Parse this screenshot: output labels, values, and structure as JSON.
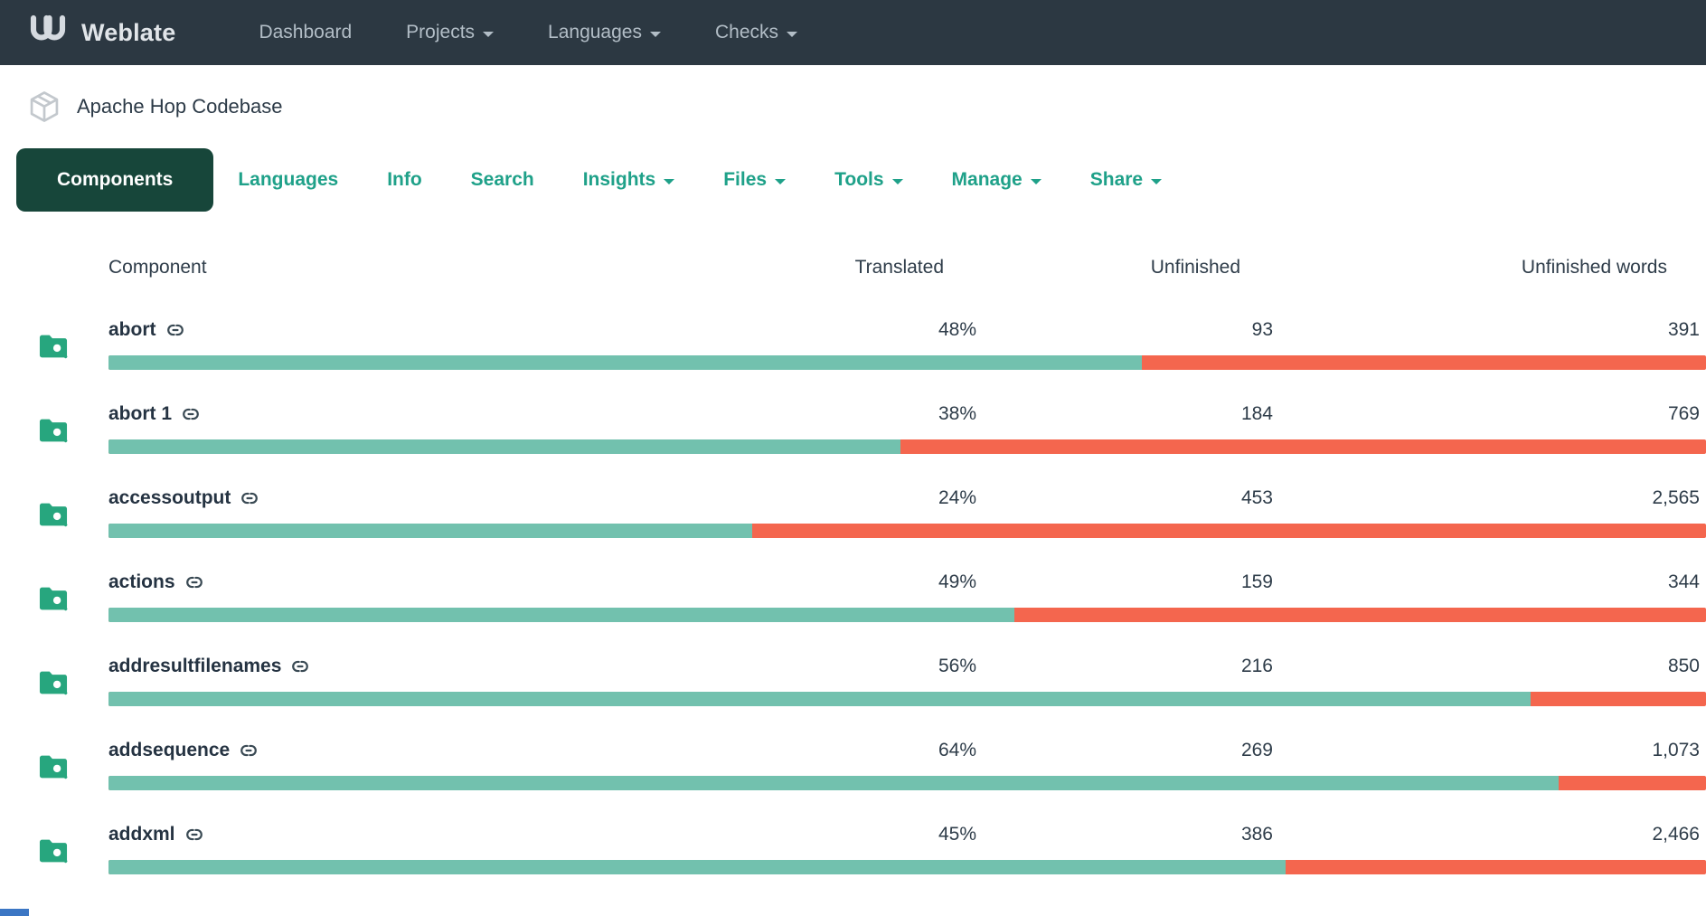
{
  "navbar": {
    "brand": "Weblate",
    "items": [
      {
        "label": "Dashboard",
        "dropdown": false
      },
      {
        "label": "Projects",
        "dropdown": true
      },
      {
        "label": "Languages",
        "dropdown": true
      },
      {
        "label": "Checks",
        "dropdown": true
      }
    ]
  },
  "breadcrumb": {
    "project": "Apache Hop Codebase"
  },
  "tabs": [
    {
      "label": "Components",
      "active": true,
      "dropdown": false
    },
    {
      "label": "Languages",
      "active": false,
      "dropdown": false
    },
    {
      "label": "Info",
      "active": false,
      "dropdown": false
    },
    {
      "label": "Search",
      "active": false,
      "dropdown": false
    },
    {
      "label": "Insights",
      "active": false,
      "dropdown": true
    },
    {
      "label": "Files",
      "active": false,
      "dropdown": true
    },
    {
      "label": "Tools",
      "active": false,
      "dropdown": true
    },
    {
      "label": "Manage",
      "active": false,
      "dropdown": true
    },
    {
      "label": "Share",
      "active": false,
      "dropdown": true
    }
  ],
  "table": {
    "headers": {
      "component": "Component",
      "translated": "Translated",
      "unfinished": "Unfinished",
      "unfinished_words": "Unfinished words"
    },
    "rows": [
      {
        "name": "abort",
        "translated": "48%",
        "unfinished": "93",
        "unfinished_words": "391",
        "bar_green_percent": 64.7
      },
      {
        "name": "abort 1",
        "translated": "38%",
        "unfinished": "184",
        "unfinished_words": "769",
        "bar_green_percent": 49.6
      },
      {
        "name": "accessoutput",
        "translated": "24%",
        "unfinished": "453",
        "unfinished_words": "2,565",
        "bar_green_percent": 40.3
      },
      {
        "name": "actions",
        "translated": "49%",
        "unfinished": "159",
        "unfinished_words": "344",
        "bar_green_percent": 56.7
      },
      {
        "name": "addresultfilenames",
        "translated": "56%",
        "unfinished": "216",
        "unfinished_words": "850",
        "bar_green_percent": 89.0
      },
      {
        "name": "addsequence",
        "translated": "64%",
        "unfinished": "269",
        "unfinished_words": "1,073",
        "bar_green_percent": 90.8
      },
      {
        "name": "addxml",
        "translated": "45%",
        "unfinished": "386",
        "unfinished_words": "2,466",
        "bar_green_percent": 73.7
      }
    ]
  },
  "colors": {
    "navbar_bg": "#2c3842",
    "accent_teal": "#1fa189",
    "active_tab_bg": "#17463a",
    "bar_green": "#72c1ae",
    "bar_red": "#f4664e",
    "folder_icon": "#27a67e"
  }
}
